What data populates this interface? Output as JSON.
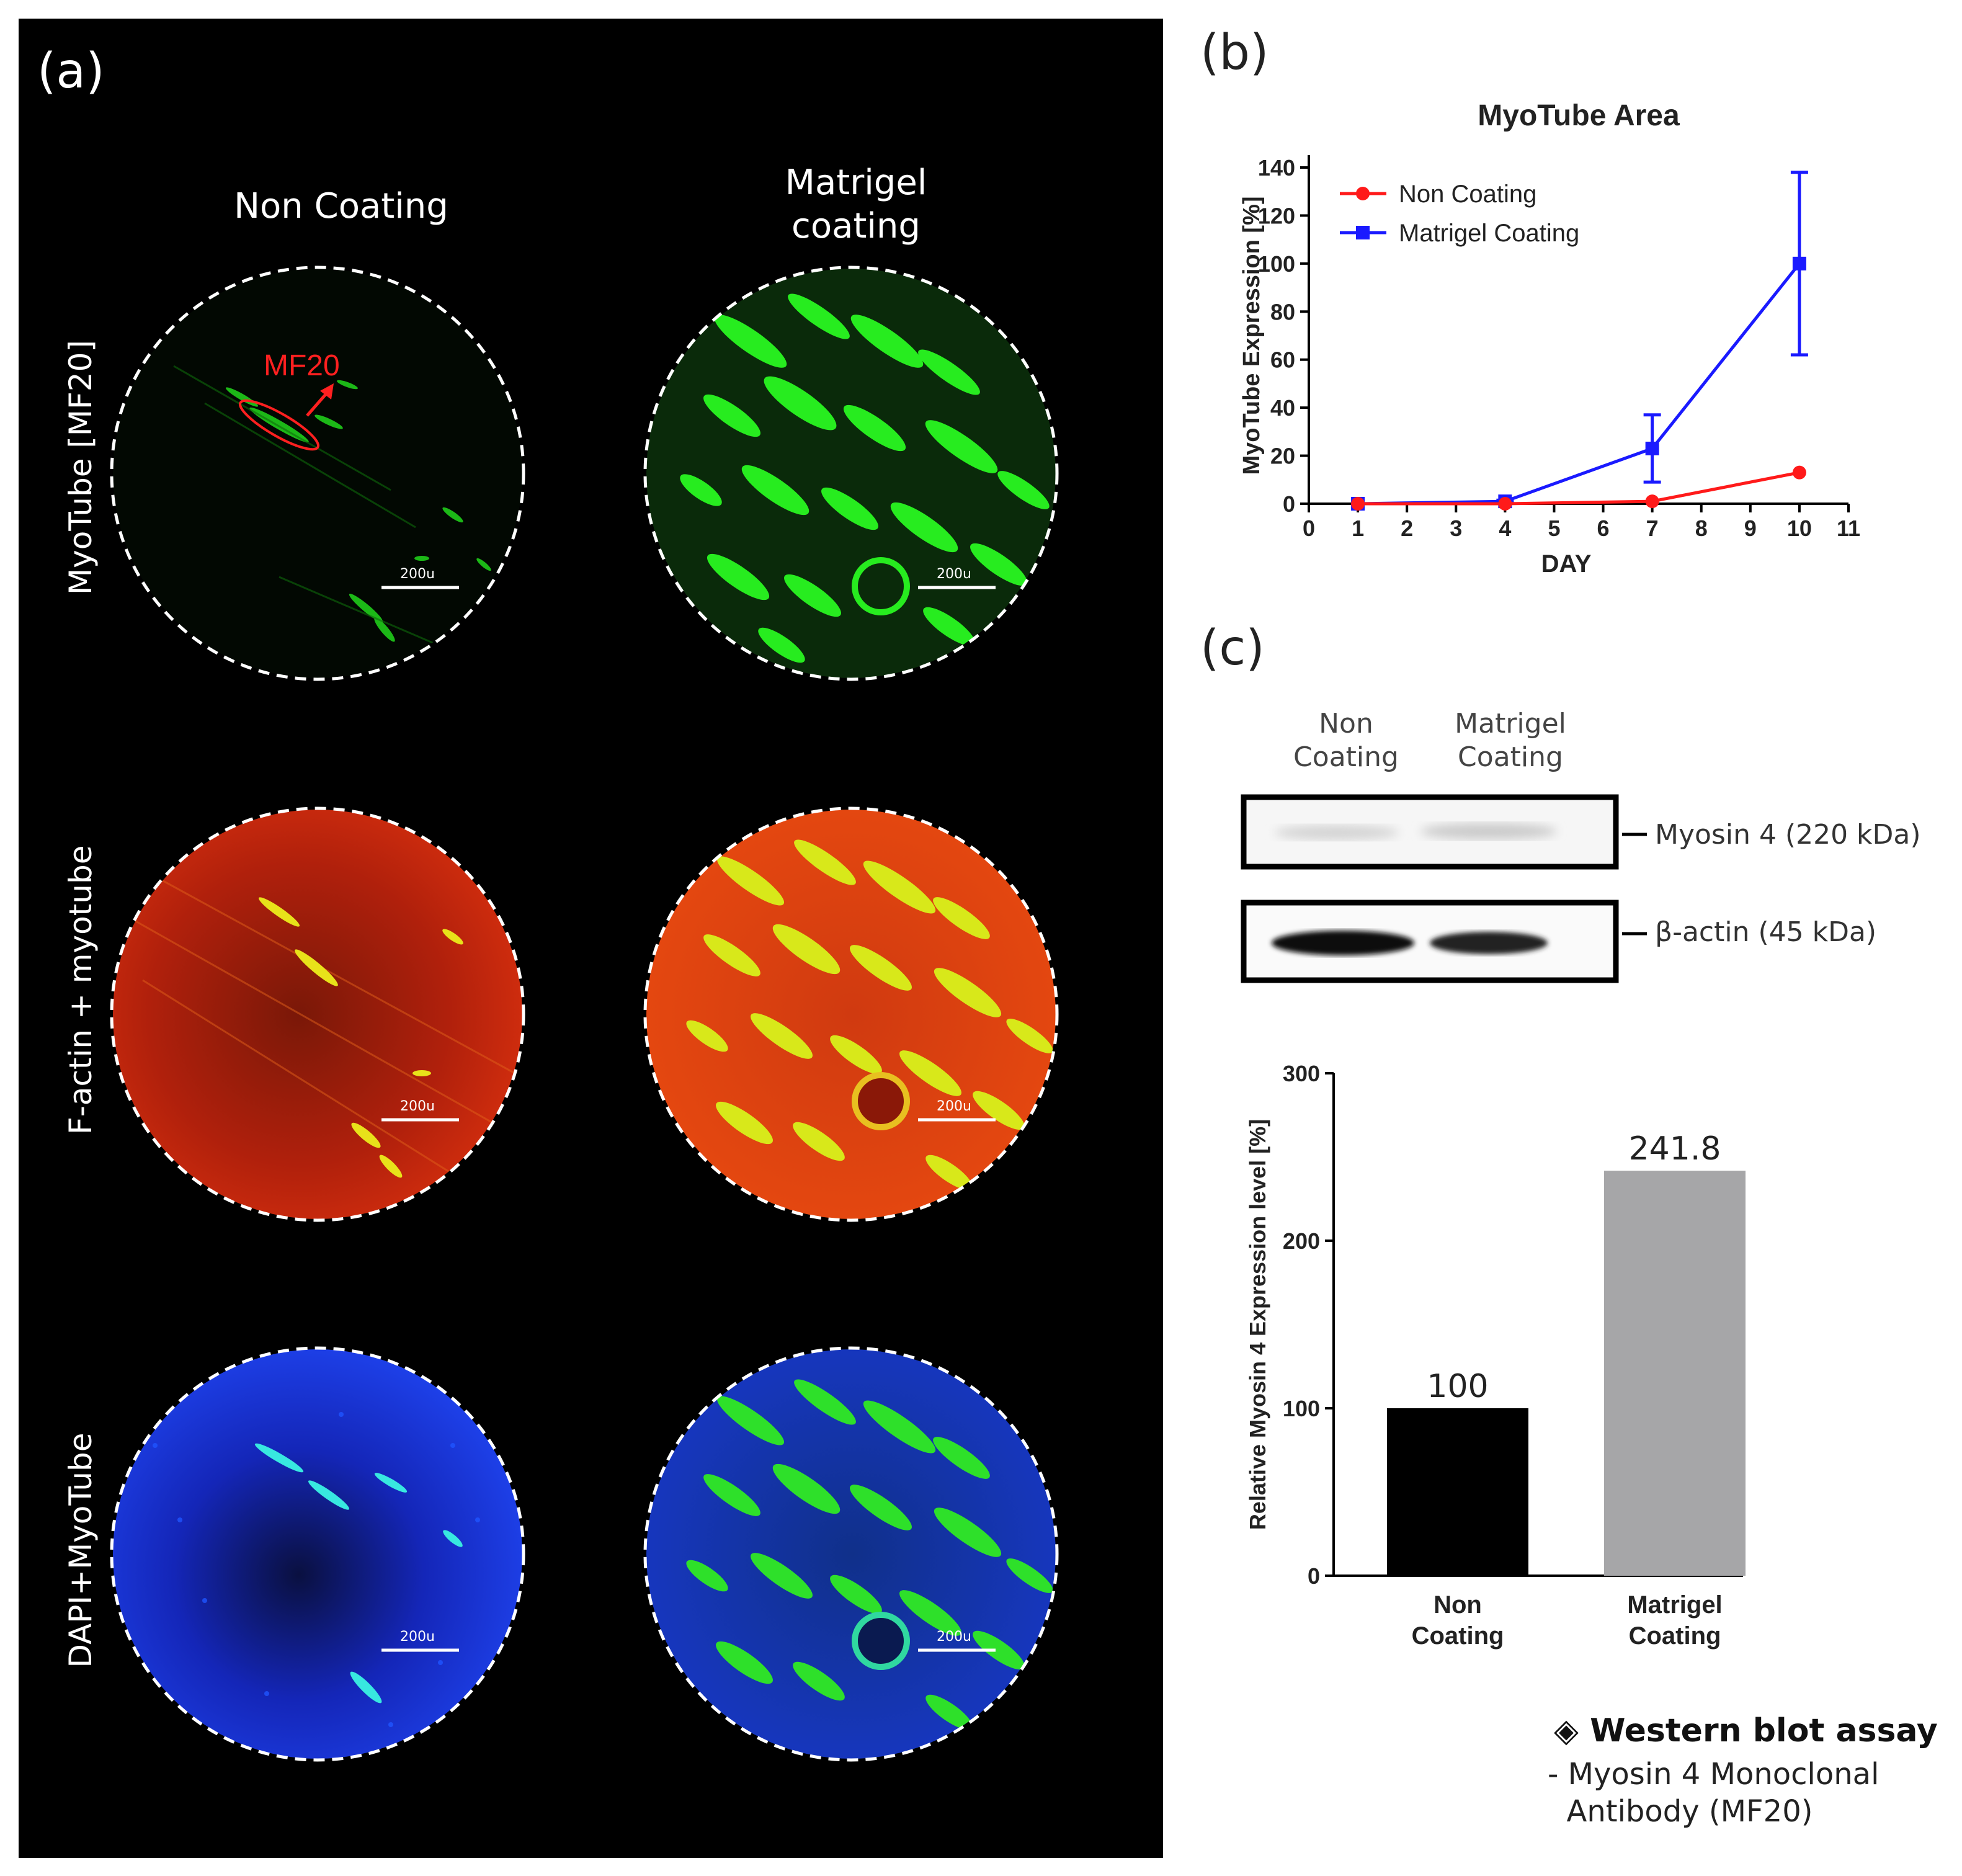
{
  "panel_a": {
    "letter": "(a)",
    "columns": [
      "Non Coating",
      "Matrigel\ncoating"
    ],
    "rows": [
      "MyoTube [MF20]",
      "F-actin + myotube",
      "DAPI+MyoTube"
    ],
    "annotation": "MF20",
    "scale_bar": "200u",
    "colors": {
      "green": "#22e81c",
      "red": "#d8260e",
      "blue": "#1a3cf0",
      "annotation": "#ff2020"
    }
  },
  "panel_b": {
    "letter": "(b)",
    "chart_data": {
      "type": "line",
      "title": "MyoTube Area",
      "xlabel": "DAY",
      "ylabel": "MyoTube Expression [%]",
      "xlim": [
        0,
        11
      ],
      "ylim": [
        0,
        140
      ],
      "xticks": [
        0,
        1,
        2,
        3,
        4,
        5,
        6,
        7,
        8,
        9,
        10,
        11
      ],
      "yticks": [
        0,
        20,
        40,
        60,
        80,
        100,
        120,
        140
      ],
      "legend": "top-left",
      "series": [
        {
          "name": "Non Coating",
          "color": "#ff1a1a",
          "marker": "circle",
          "x": [
            1,
            4,
            7,
            10
          ],
          "y": [
            0,
            0,
            1,
            13
          ],
          "err": [
            0,
            0,
            0,
            0
          ]
        },
        {
          "name": "Matrigel Coating",
          "color": "#1a1aff",
          "marker": "square",
          "x": [
            1,
            4,
            7,
            10
          ],
          "y": [
            0,
            1,
            23,
            100
          ],
          "err": [
            0,
            0.5,
            14,
            38
          ]
        }
      ]
    }
  },
  "panel_c": {
    "letter": "(c)",
    "blot_lanes": [
      "Non\nCoating",
      "Matrigel\nCoating"
    ],
    "blot_bands": [
      "Myosin 4 (220 kDa)",
      "β-actin (45 kDa)"
    ],
    "chart_data": {
      "type": "bar",
      "title": "",
      "xlabel": "",
      "ylabel": "Relative Myosin 4 Expression level [%]",
      "categories": [
        "Non\nCoating",
        "Matrigel\nCoating"
      ],
      "values": [
        100,
        241.8
      ],
      "value_labels": [
        "100",
        "241.8"
      ],
      "colors": [
        "#000000",
        "#a6a6a8"
      ],
      "ylim": [
        0,
        300
      ],
      "yticks": [
        0,
        100,
        200,
        300
      ]
    },
    "note": {
      "title": "◈ Western blot assay",
      "lines": [
        "- Myosin 4 Monoclonal",
        "  Antibody (MF20)"
      ]
    }
  }
}
